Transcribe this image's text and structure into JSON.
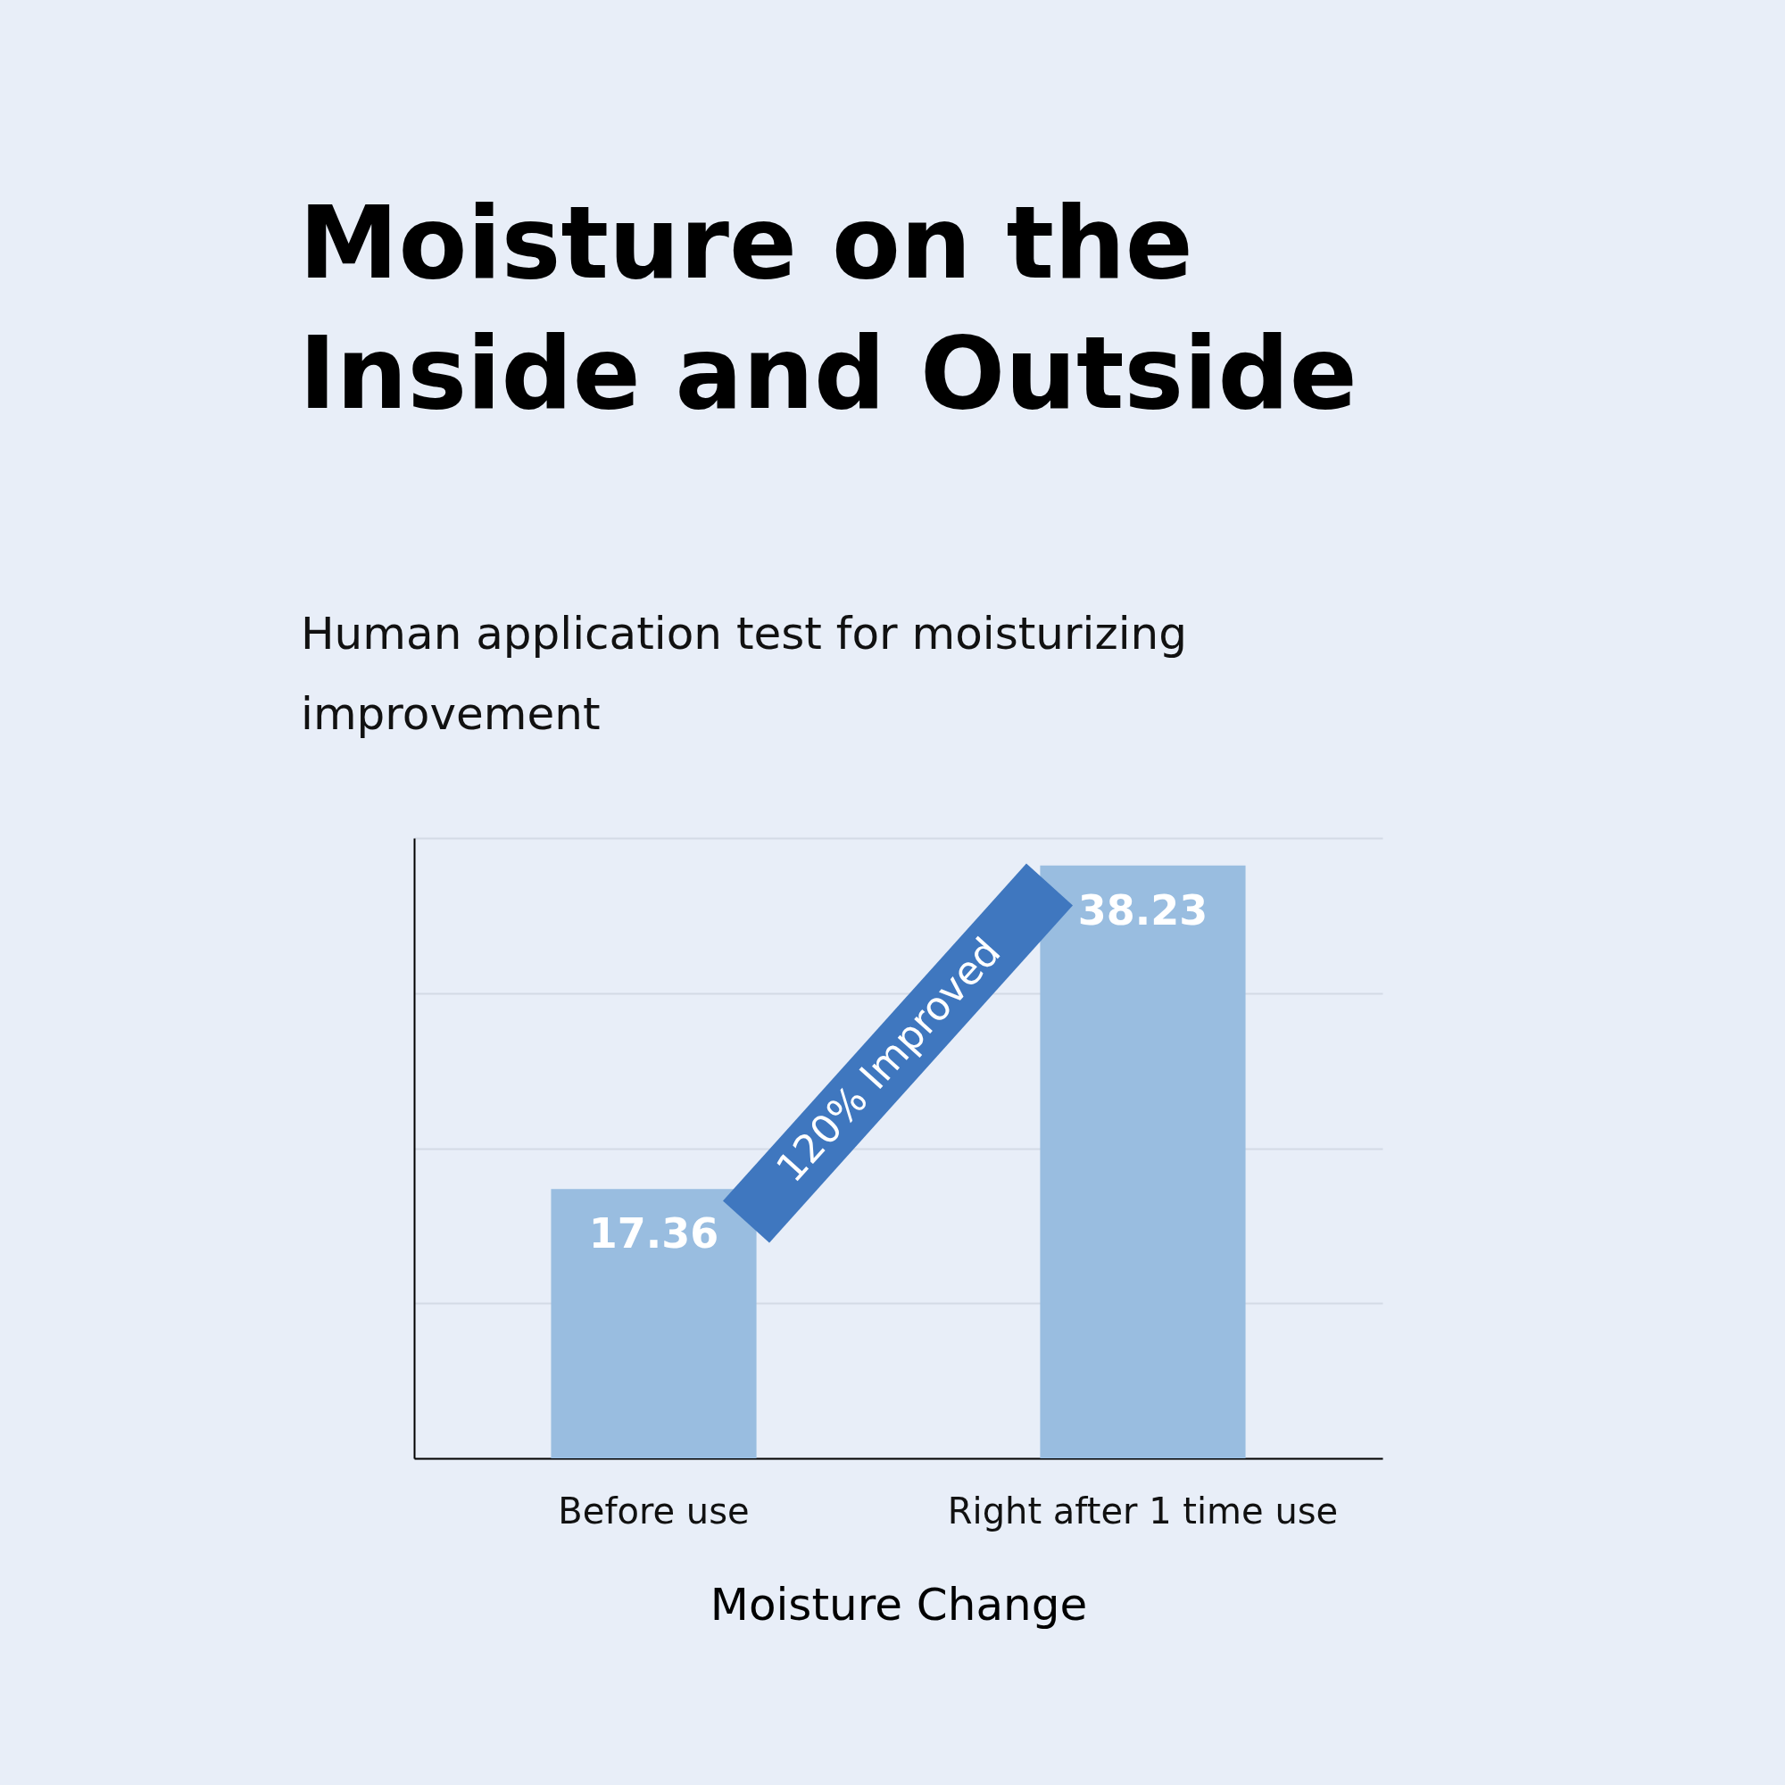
{
  "chart_data": {
    "type": "bar",
    "title": "Moisture on the Inside and Outside",
    "subtitle": "Human application test for moisturizing improvement",
    "xlabel": "Moisture Change",
    "categories": [
      "Before use",
      "Right after 1 time use"
    ],
    "values": [
      17.36,
      38.23
    ],
    "color": "#99bde0",
    "ylim": [
      0,
      40
    ],
    "yticks": [
      {
        "value": 0,
        "label": null
      },
      {
        "value": 10,
        "label": null
      },
      {
        "value": 20,
        "label": null
      },
      {
        "value": 30,
        "label": null
      },
      {
        "value": 40,
        "label": null
      }
    ],
    "tick_labels": "x",
    "grid": "y",
    "data_labels": true,
    "annotations": [
      "120% Improved"
    ]
  }
}
